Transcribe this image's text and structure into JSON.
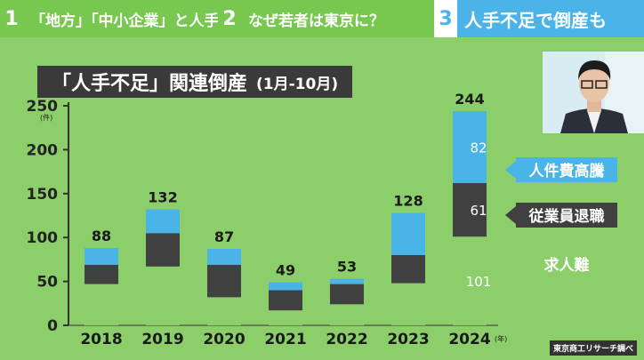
{
  "tabs": [
    {
      "number": "1",
      "label": "「地方」「中小企業」と人手不足"
    },
    {
      "number": "2",
      "label": "なぜ若者は東京に？"
    },
    {
      "number": "3",
      "label": "人手不足で倒産も"
    }
  ],
  "title": {
    "main": "「人手不足」関連倒産",
    "sub": "(1月-10月)"
  },
  "source": "東京商工リサーチ調べ",
  "colors": {
    "green": "#8ccf6a",
    "dark": "#404040",
    "blue": "#4ab3e8",
    "tab_green": "#78c850"
  },
  "chart_data": {
    "type": "bar",
    "stacked": true,
    "categories": [
      "2018",
      "2019",
      "2020",
      "2021",
      "2022",
      "2023",
      "2024"
    ],
    "x_unit": "(年)",
    "y_unit": "(件)",
    "ylim": [
      0,
      250
    ],
    "yticks": [
      0,
      50,
      100,
      150,
      200,
      250
    ],
    "totals": [
      88,
      132,
      87,
      49,
      53,
      128,
      244
    ],
    "series": [
      {
        "name": "求人難",
        "color": "#8ccf6a",
        "values": [
          47,
          67,
          32,
          17,
          24,
          48,
          101
        ]
      },
      {
        "name": "従業員退職",
        "color": "#404040",
        "values": [
          22,
          38,
          37,
          23,
          23,
          32,
          61
        ]
      },
      {
        "name": "人件費高騰",
        "color": "#4ab3e8",
        "values": [
          19,
          27,
          18,
          9,
          6,
          48,
          82
        ]
      }
    ],
    "segment_labels_2024": [
      "101",
      "61",
      "82"
    ]
  }
}
